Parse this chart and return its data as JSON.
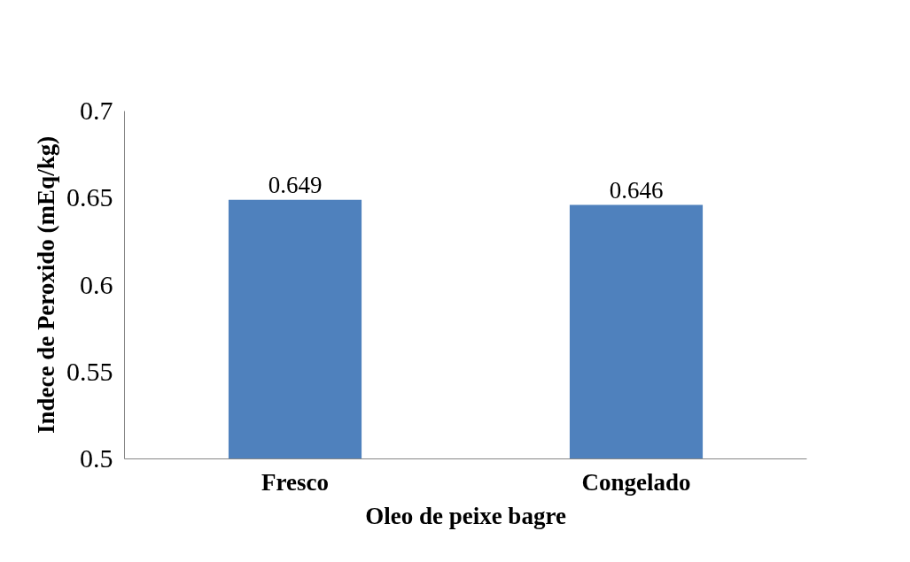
{
  "chart_data": {
    "type": "bar",
    "xlabel": "Oleo de peixe bagre",
    "ylabel": "Indece de Peroxido (mEq/kg)",
    "categories": [
      "Fresco",
      "Congelado"
    ],
    "values": [
      0.649,
      0.646
    ],
    "color": "#4f81bd",
    "ylim": [
      0.5,
      0.7
    ],
    "yticks": [
      0.5,
      0.55,
      0.6,
      0.65,
      0.7
    ],
    "grid": false,
    "data_labels": true
  }
}
